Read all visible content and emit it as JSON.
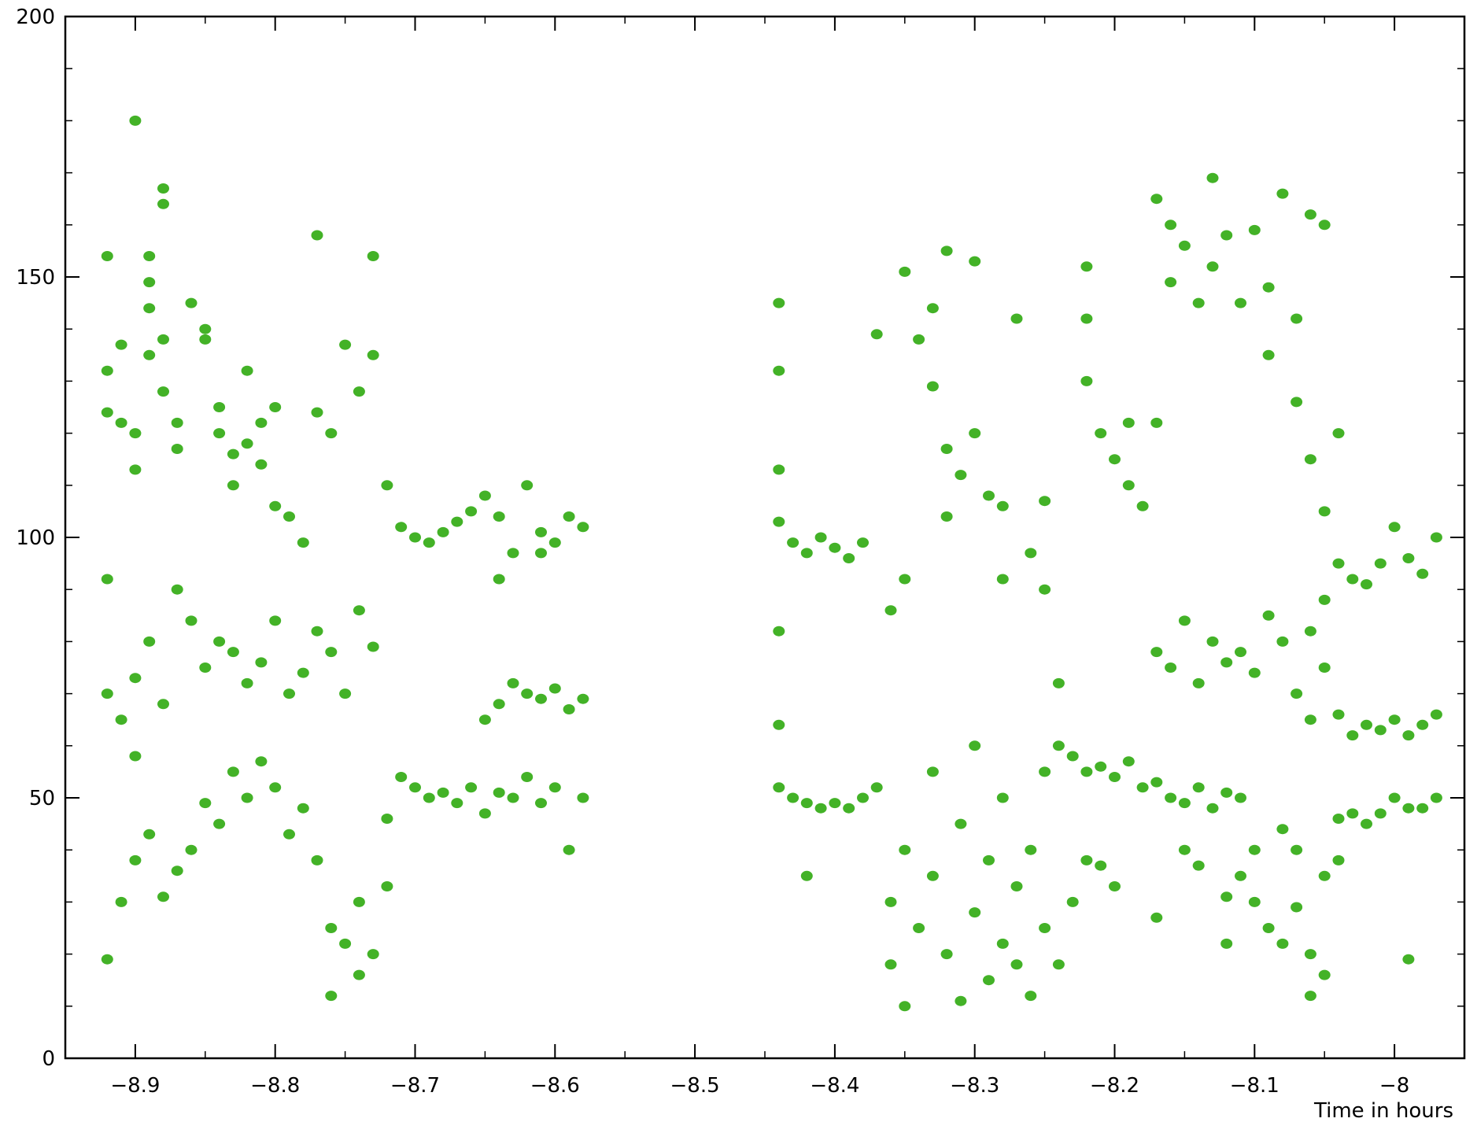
{
  "chart_data": {
    "type": "scatter",
    "xlabel": "Time in hours",
    "ylabel": "",
    "xlim": [
      -8.95,
      -7.95
    ],
    "ylim": [
      0,
      200
    ],
    "xticks": [
      -8.9,
      -8.8,
      -8.7,
      -8.6,
      -8.5,
      -8.4,
      -8.3,
      -8.2,
      -8.1,
      -8
    ],
    "xtick_labels": [
      "−8.9",
      "−8.8",
      "−8.7",
      "−8.6",
      "−8.5",
      "−8.4",
      "−8.3",
      "−8.2",
      "−8.1",
      "−8"
    ],
    "yticks": [
      0,
      50,
      100,
      150,
      200
    ],
    "ytick_labels": [
      "0",
      "50",
      "100",
      "150",
      "200"
    ],
    "grid": false,
    "marker_color": "#43b227",
    "series": [
      {
        "points": [
          [
            -8.9,
            180
          ],
          [
            -8.92,
            154
          ],
          [
            -8.92,
            132
          ],
          [
            -8.92,
            124
          ],
          [
            -8.91,
            137
          ],
          [
            -8.91,
            122
          ],
          [
            -8.9,
            113
          ],
          [
            -8.9,
            120
          ],
          [
            -8.89,
            135
          ],
          [
            -8.89,
            154
          ],
          [
            -8.88,
            167
          ],
          [
            -8.88,
            164
          ],
          [
            -8.89,
            149
          ],
          [
            -8.89,
            144
          ],
          [
            -8.88,
            138
          ],
          [
            -8.88,
            128
          ],
          [
            -8.87,
            122
          ],
          [
            -8.87,
            117
          ],
          [
            -8.86,
            145
          ],
          [
            -8.85,
            138
          ],
          [
            -8.85,
            140
          ],
          [
            -8.84,
            125
          ],
          [
            -8.84,
            120
          ],
          [
            -8.83,
            116
          ],
          [
            -8.83,
            110
          ],
          [
            -8.82,
            132
          ],
          [
            -8.82,
            118
          ],
          [
            -8.81,
            122
          ],
          [
            -8.81,
            114
          ],
          [
            -8.8,
            106
          ],
          [
            -8.8,
            125
          ],
          [
            -8.79,
            104
          ],
          [
            -8.78,
            99
          ],
          [
            -8.77,
            158
          ],
          [
            -8.77,
            124
          ],
          [
            -8.76,
            120
          ],
          [
            -8.75,
            137
          ],
          [
            -8.74,
            128
          ],
          [
            -8.73,
            135
          ],
          [
            -8.73,
            154
          ],
          [
            -8.92,
            92
          ],
          [
            -8.92,
            70
          ],
          [
            -8.91,
            65
          ],
          [
            -8.9,
            58
          ],
          [
            -8.9,
            73
          ],
          [
            -8.89,
            80
          ],
          [
            -8.88,
            68
          ],
          [
            -8.87,
            90
          ],
          [
            -8.86,
            84
          ],
          [
            -8.85,
            75
          ],
          [
            -8.84,
            80
          ],
          [
            -8.83,
            78
          ],
          [
            -8.82,
            72
          ],
          [
            -8.81,
            76
          ],
          [
            -8.8,
            84
          ],
          [
            -8.79,
            70
          ],
          [
            -8.78,
            74
          ],
          [
            -8.77,
            82
          ],
          [
            -8.76,
            78
          ],
          [
            -8.75,
            70
          ],
          [
            -8.74,
            86
          ],
          [
            -8.73,
            79
          ],
          [
            -8.92,
            19
          ],
          [
            -8.91,
            30
          ],
          [
            -8.9,
            38
          ],
          [
            -8.89,
            43
          ],
          [
            -8.88,
            31
          ],
          [
            -8.87,
            36
          ],
          [
            -8.86,
            40
          ],
          [
            -8.85,
            49
          ],
          [
            -8.84,
            45
          ],
          [
            -8.83,
            55
          ],
          [
            -8.82,
            50
          ],
          [
            -8.81,
            57
          ],
          [
            -8.8,
            52
          ],
          [
            -8.79,
            43
          ],
          [
            -8.78,
            48
          ],
          [
            -8.77,
            38
          ],
          [
            -8.76,
            25
          ],
          [
            -8.76,
            12
          ],
          [
            -8.75,
            22
          ],
          [
            -8.74,
            30
          ],
          [
            -8.74,
            16
          ],
          [
            -8.73,
            20
          ],
          [
            -8.72,
            33
          ],
          [
            -8.72,
            46
          ],
          [
            -8.71,
            54
          ],
          [
            -8.7,
            52
          ],
          [
            -8.69,
            50
          ],
          [
            -8.68,
            51
          ],
          [
            -8.67,
            49
          ],
          [
            -8.66,
            52
          ],
          [
            -8.65,
            47
          ],
          [
            -8.64,
            51
          ],
          [
            -8.63,
            50
          ],
          [
            -8.62,
            54
          ],
          [
            -8.61,
            49
          ],
          [
            -8.6,
            52
          ],
          [
            -8.59,
            40
          ],
          [
            -8.58,
            50
          ],
          [
            -8.72,
            110
          ],
          [
            -8.71,
            102
          ],
          [
            -8.7,
            100
          ],
          [
            -8.69,
            99
          ],
          [
            -8.68,
            101
          ],
          [
            -8.67,
            103
          ],
          [
            -8.66,
            105
          ],
          [
            -8.65,
            108
          ],
          [
            -8.64,
            104
          ],
          [
            -8.63,
            97
          ],
          [
            -8.62,
            110
          ],
          [
            -8.61,
            101
          ],
          [
            -8.6,
            99
          ],
          [
            -8.59,
            104
          ],
          [
            -8.58,
            102
          ],
          [
            -8.65,
            65
          ],
          [
            -8.64,
            68
          ],
          [
            -8.63,
            72
          ],
          [
            -8.62,
            70
          ],
          [
            -8.61,
            69
          ],
          [
            -8.6,
            71
          ],
          [
            -8.59,
            67
          ],
          [
            -8.58,
            69
          ],
          [
            -8.64,
            92
          ],
          [
            -8.61,
            97
          ],
          [
            -8.44,
            145
          ],
          [
            -8.44,
            132
          ],
          [
            -8.44,
            113
          ],
          [
            -8.44,
            103
          ],
          [
            -8.43,
            99
          ],
          [
            -8.42,
            97
          ],
          [
            -8.41,
            100
          ],
          [
            -8.4,
            98
          ],
          [
            -8.39,
            96
          ],
          [
            -8.38,
            99
          ],
          [
            -8.44,
            82
          ],
          [
            -8.44,
            64
          ],
          [
            -8.44,
            52
          ],
          [
            -8.43,
            50
          ],
          [
            -8.42,
            49
          ],
          [
            -8.41,
            48
          ],
          [
            -8.4,
            49
          ],
          [
            -8.39,
            48
          ],
          [
            -8.38,
            50
          ],
          [
            -8.37,
            52
          ],
          [
            -8.42,
            35
          ],
          [
            -8.37,
            139
          ],
          [
            -8.36,
            86
          ],
          [
            -8.35,
            151
          ],
          [
            -8.35,
            92
          ],
          [
            -8.34,
            138
          ],
          [
            -8.33,
            144
          ],
          [
            -8.33,
            129
          ],
          [
            -8.32,
            155
          ],
          [
            -8.32,
            117
          ],
          [
            -8.32,
            104
          ],
          [
            -8.31,
            112
          ],
          [
            -8.3,
            153
          ],
          [
            -8.3,
            120
          ],
          [
            -8.29,
            108
          ],
          [
            -8.28,
            106
          ],
          [
            -8.28,
            92
          ],
          [
            -8.27,
            142
          ],
          [
            -8.26,
            97
          ],
          [
            -8.25,
            107
          ],
          [
            -8.25,
            90
          ],
          [
            -8.24,
            72
          ],
          [
            -8.36,
            30
          ],
          [
            -8.36,
            18
          ],
          [
            -8.35,
            10
          ],
          [
            -8.35,
            40
          ],
          [
            -8.34,
            25
          ],
          [
            -8.33,
            35
          ],
          [
            -8.33,
            55
          ],
          [
            -8.32,
            20
          ],
          [
            -8.31,
            11
          ],
          [
            -8.31,
            45
          ],
          [
            -8.3,
            28
          ],
          [
            -8.3,
            60
          ],
          [
            -8.29,
            15
          ],
          [
            -8.29,
            38
          ],
          [
            -8.28,
            22
          ],
          [
            -8.28,
            50
          ],
          [
            -8.27,
            33
          ],
          [
            -8.27,
            18
          ],
          [
            -8.26,
            40
          ],
          [
            -8.26,
            12
          ],
          [
            -8.25,
            25
          ],
          [
            -8.25,
            55
          ],
          [
            -8.24,
            18
          ],
          [
            -8.24,
            60
          ],
          [
            -8.23,
            30
          ],
          [
            -8.23,
            58
          ],
          [
            -8.22,
            55
          ],
          [
            -8.21,
            56
          ],
          [
            -8.2,
            54
          ],
          [
            -8.19,
            57
          ],
          [
            -8.18,
            52
          ],
          [
            -8.17,
            53
          ],
          [
            -8.16,
            50
          ],
          [
            -8.15,
            49
          ],
          [
            -8.14,
            52
          ],
          [
            -8.13,
            48
          ],
          [
            -8.12,
            51
          ],
          [
            -8.11,
            50
          ],
          [
            -8.22,
            38
          ],
          [
            -8.21,
            37
          ],
          [
            -8.2,
            33
          ],
          [
            -8.22,
            142
          ],
          [
            -8.22,
            130
          ],
          [
            -8.22,
            152
          ],
          [
            -8.21,
            120
          ],
          [
            -8.2,
            115
          ],
          [
            -8.19,
            110
          ],
          [
            -8.18,
            106
          ],
          [
            -8.17,
            122
          ],
          [
            -8.19,
            122
          ],
          [
            -8.17,
            165
          ],
          [
            -8.16,
            160
          ],
          [
            -8.16,
            149
          ],
          [
            -8.15,
            156
          ],
          [
            -8.14,
            145
          ],
          [
            -8.13,
            152
          ],
          [
            -8.13,
            169
          ],
          [
            -8.12,
            158
          ],
          [
            -8.11,
            145
          ],
          [
            -8.1,
            159
          ],
          [
            -8.09,
            135
          ],
          [
            -8.09,
            148
          ],
          [
            -8.08,
            166
          ],
          [
            -8.07,
            142
          ],
          [
            -8.07,
            126
          ],
          [
            -8.06,
            162
          ],
          [
            -8.06,
            115
          ],
          [
            -8.05,
            160
          ],
          [
            -8.04,
            120
          ],
          [
            -8.05,
            105
          ],
          [
            -8.05,
            88
          ],
          [
            -8.17,
            78
          ],
          [
            -8.16,
            75
          ],
          [
            -8.15,
            84
          ],
          [
            -8.14,
            72
          ],
          [
            -8.13,
            80
          ],
          [
            -8.12,
            76
          ],
          [
            -8.11,
            78
          ],
          [
            -8.1,
            74
          ],
          [
            -8.09,
            85
          ],
          [
            -8.08,
            80
          ],
          [
            -8.07,
            70
          ],
          [
            -8.06,
            65
          ],
          [
            -8.05,
            75
          ],
          [
            -8.04,
            66
          ],
          [
            -8.03,
            62
          ],
          [
            -8.02,
            64
          ],
          [
            -8.01,
            63
          ],
          [
            -8,
            65
          ],
          [
            -7.99,
            62
          ],
          [
            -7.98,
            64
          ],
          [
            -7.97,
            66
          ],
          [
            -8.04,
            95
          ],
          [
            -8.03,
            92
          ],
          [
            -8.02,
            91
          ],
          [
            -8.01,
            95
          ],
          [
            -8,
            102
          ],
          [
            -7.99,
            96
          ],
          [
            -7.98,
            93
          ],
          [
            -7.97,
            100
          ],
          [
            -8.04,
            46
          ],
          [
            -8.03,
            47
          ],
          [
            -8.02,
            45
          ],
          [
            -8.01,
            47
          ],
          [
            -8,
            50
          ],
          [
            -7.99,
            48
          ],
          [
            -7.98,
            48
          ],
          [
            -7.97,
            50
          ],
          [
            -8.11,
            35
          ],
          [
            -8.1,
            30
          ],
          [
            -8.09,
            25
          ],
          [
            -8.08,
            22
          ],
          [
            -8.07,
            29
          ],
          [
            -8.06,
            12
          ],
          [
            -8.06,
            20
          ],
          [
            -8.05,
            16
          ],
          [
            -8.05,
            35
          ],
          [
            -8.04,
            38
          ],
          [
            -8.08,
            44
          ],
          [
            -8.07,
            40
          ],
          [
            -8.12,
            22
          ],
          [
            -8.12,
            31
          ],
          [
            -8.1,
            40
          ],
          [
            -7.99,
            19
          ],
          [
            -8.17,
            27
          ],
          [
            -8.15,
            40
          ],
          [
            -8.14,
            37
          ],
          [
            -8.06,
            82
          ]
        ]
      }
    ]
  }
}
